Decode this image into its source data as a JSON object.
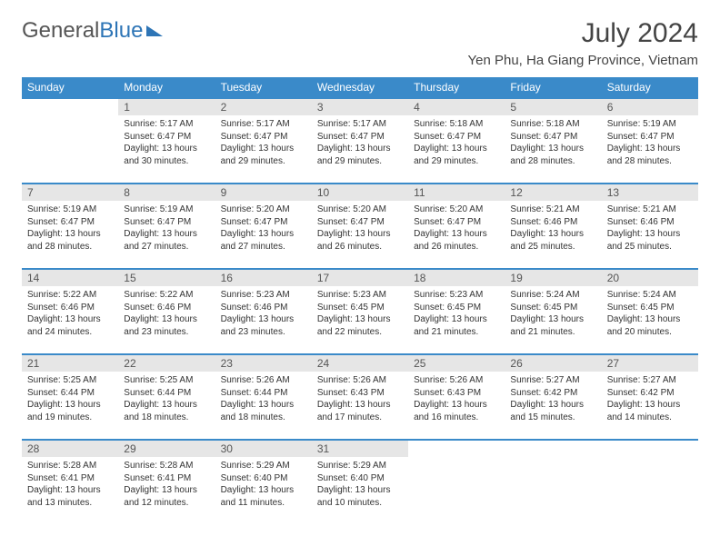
{
  "brand": {
    "part1": "General",
    "part2": "Blue"
  },
  "month_title": "July 2024",
  "location": "Yen Phu, Ha Giang Province, Vietnam",
  "colors": {
    "header_bg": "#3a8ac9",
    "header_text": "#ffffff",
    "daynum_bg": "#e6e6e6",
    "row_border": "#3a8ac9",
    "body_text": "#333333",
    "brand_gray": "#555555",
    "brand_blue": "#2e75b6",
    "page_bg": "#ffffff"
  },
  "typography": {
    "month_title_fontsize": 30,
    "location_fontsize": 15,
    "dayhead_fontsize": 12,
    "daynum_fontsize": 12,
    "body_fontsize": 10
  },
  "day_headers": [
    "Sunday",
    "Monday",
    "Tuesday",
    "Wednesday",
    "Thursday",
    "Friday",
    "Saturday"
  ],
  "weeks": [
    [
      {
        "n": "",
        "lines": []
      },
      {
        "n": "1",
        "lines": [
          "Sunrise: 5:17 AM",
          "Sunset: 6:47 PM",
          "Daylight: 13 hours",
          "and 30 minutes."
        ]
      },
      {
        "n": "2",
        "lines": [
          "Sunrise: 5:17 AM",
          "Sunset: 6:47 PM",
          "Daylight: 13 hours",
          "and 29 minutes."
        ]
      },
      {
        "n": "3",
        "lines": [
          "Sunrise: 5:17 AM",
          "Sunset: 6:47 PM",
          "Daylight: 13 hours",
          "and 29 minutes."
        ]
      },
      {
        "n": "4",
        "lines": [
          "Sunrise: 5:18 AM",
          "Sunset: 6:47 PM",
          "Daylight: 13 hours",
          "and 29 minutes."
        ]
      },
      {
        "n": "5",
        "lines": [
          "Sunrise: 5:18 AM",
          "Sunset: 6:47 PM",
          "Daylight: 13 hours",
          "and 28 minutes."
        ]
      },
      {
        "n": "6",
        "lines": [
          "Sunrise: 5:19 AM",
          "Sunset: 6:47 PM",
          "Daylight: 13 hours",
          "and 28 minutes."
        ]
      }
    ],
    [
      {
        "n": "7",
        "lines": [
          "Sunrise: 5:19 AM",
          "Sunset: 6:47 PM",
          "Daylight: 13 hours",
          "and 28 minutes."
        ]
      },
      {
        "n": "8",
        "lines": [
          "Sunrise: 5:19 AM",
          "Sunset: 6:47 PM",
          "Daylight: 13 hours",
          "and 27 minutes."
        ]
      },
      {
        "n": "9",
        "lines": [
          "Sunrise: 5:20 AM",
          "Sunset: 6:47 PM",
          "Daylight: 13 hours",
          "and 27 minutes."
        ]
      },
      {
        "n": "10",
        "lines": [
          "Sunrise: 5:20 AM",
          "Sunset: 6:47 PM",
          "Daylight: 13 hours",
          "and 26 minutes."
        ]
      },
      {
        "n": "11",
        "lines": [
          "Sunrise: 5:20 AM",
          "Sunset: 6:47 PM",
          "Daylight: 13 hours",
          "and 26 minutes."
        ]
      },
      {
        "n": "12",
        "lines": [
          "Sunrise: 5:21 AM",
          "Sunset: 6:46 PM",
          "Daylight: 13 hours",
          "and 25 minutes."
        ]
      },
      {
        "n": "13",
        "lines": [
          "Sunrise: 5:21 AM",
          "Sunset: 6:46 PM",
          "Daylight: 13 hours",
          "and 25 minutes."
        ]
      }
    ],
    [
      {
        "n": "14",
        "lines": [
          "Sunrise: 5:22 AM",
          "Sunset: 6:46 PM",
          "Daylight: 13 hours",
          "and 24 minutes."
        ]
      },
      {
        "n": "15",
        "lines": [
          "Sunrise: 5:22 AM",
          "Sunset: 6:46 PM",
          "Daylight: 13 hours",
          "and 23 minutes."
        ]
      },
      {
        "n": "16",
        "lines": [
          "Sunrise: 5:23 AM",
          "Sunset: 6:46 PM",
          "Daylight: 13 hours",
          "and 23 minutes."
        ]
      },
      {
        "n": "17",
        "lines": [
          "Sunrise: 5:23 AM",
          "Sunset: 6:45 PM",
          "Daylight: 13 hours",
          "and 22 minutes."
        ]
      },
      {
        "n": "18",
        "lines": [
          "Sunrise: 5:23 AM",
          "Sunset: 6:45 PM",
          "Daylight: 13 hours",
          "and 21 minutes."
        ]
      },
      {
        "n": "19",
        "lines": [
          "Sunrise: 5:24 AM",
          "Sunset: 6:45 PM",
          "Daylight: 13 hours",
          "and 21 minutes."
        ]
      },
      {
        "n": "20",
        "lines": [
          "Sunrise: 5:24 AM",
          "Sunset: 6:45 PM",
          "Daylight: 13 hours",
          "and 20 minutes."
        ]
      }
    ],
    [
      {
        "n": "21",
        "lines": [
          "Sunrise: 5:25 AM",
          "Sunset: 6:44 PM",
          "Daylight: 13 hours",
          "and 19 minutes."
        ]
      },
      {
        "n": "22",
        "lines": [
          "Sunrise: 5:25 AM",
          "Sunset: 6:44 PM",
          "Daylight: 13 hours",
          "and 18 minutes."
        ]
      },
      {
        "n": "23",
        "lines": [
          "Sunrise: 5:26 AM",
          "Sunset: 6:44 PM",
          "Daylight: 13 hours",
          "and 18 minutes."
        ]
      },
      {
        "n": "24",
        "lines": [
          "Sunrise: 5:26 AM",
          "Sunset: 6:43 PM",
          "Daylight: 13 hours",
          "and 17 minutes."
        ]
      },
      {
        "n": "25",
        "lines": [
          "Sunrise: 5:26 AM",
          "Sunset: 6:43 PM",
          "Daylight: 13 hours",
          "and 16 minutes."
        ]
      },
      {
        "n": "26",
        "lines": [
          "Sunrise: 5:27 AM",
          "Sunset: 6:42 PM",
          "Daylight: 13 hours",
          "and 15 minutes."
        ]
      },
      {
        "n": "27",
        "lines": [
          "Sunrise: 5:27 AM",
          "Sunset: 6:42 PM",
          "Daylight: 13 hours",
          "and 14 minutes."
        ]
      }
    ],
    [
      {
        "n": "28",
        "lines": [
          "Sunrise: 5:28 AM",
          "Sunset: 6:41 PM",
          "Daylight: 13 hours",
          "and 13 minutes."
        ]
      },
      {
        "n": "29",
        "lines": [
          "Sunrise: 5:28 AM",
          "Sunset: 6:41 PM",
          "Daylight: 13 hours",
          "and 12 minutes."
        ]
      },
      {
        "n": "30",
        "lines": [
          "Sunrise: 5:29 AM",
          "Sunset: 6:40 PM",
          "Daylight: 13 hours",
          "and 11 minutes."
        ]
      },
      {
        "n": "31",
        "lines": [
          "Sunrise: 5:29 AM",
          "Sunset: 6:40 PM",
          "Daylight: 13 hours",
          "and 10 minutes."
        ]
      },
      {
        "n": "",
        "lines": []
      },
      {
        "n": "",
        "lines": []
      },
      {
        "n": "",
        "lines": []
      }
    ]
  ]
}
